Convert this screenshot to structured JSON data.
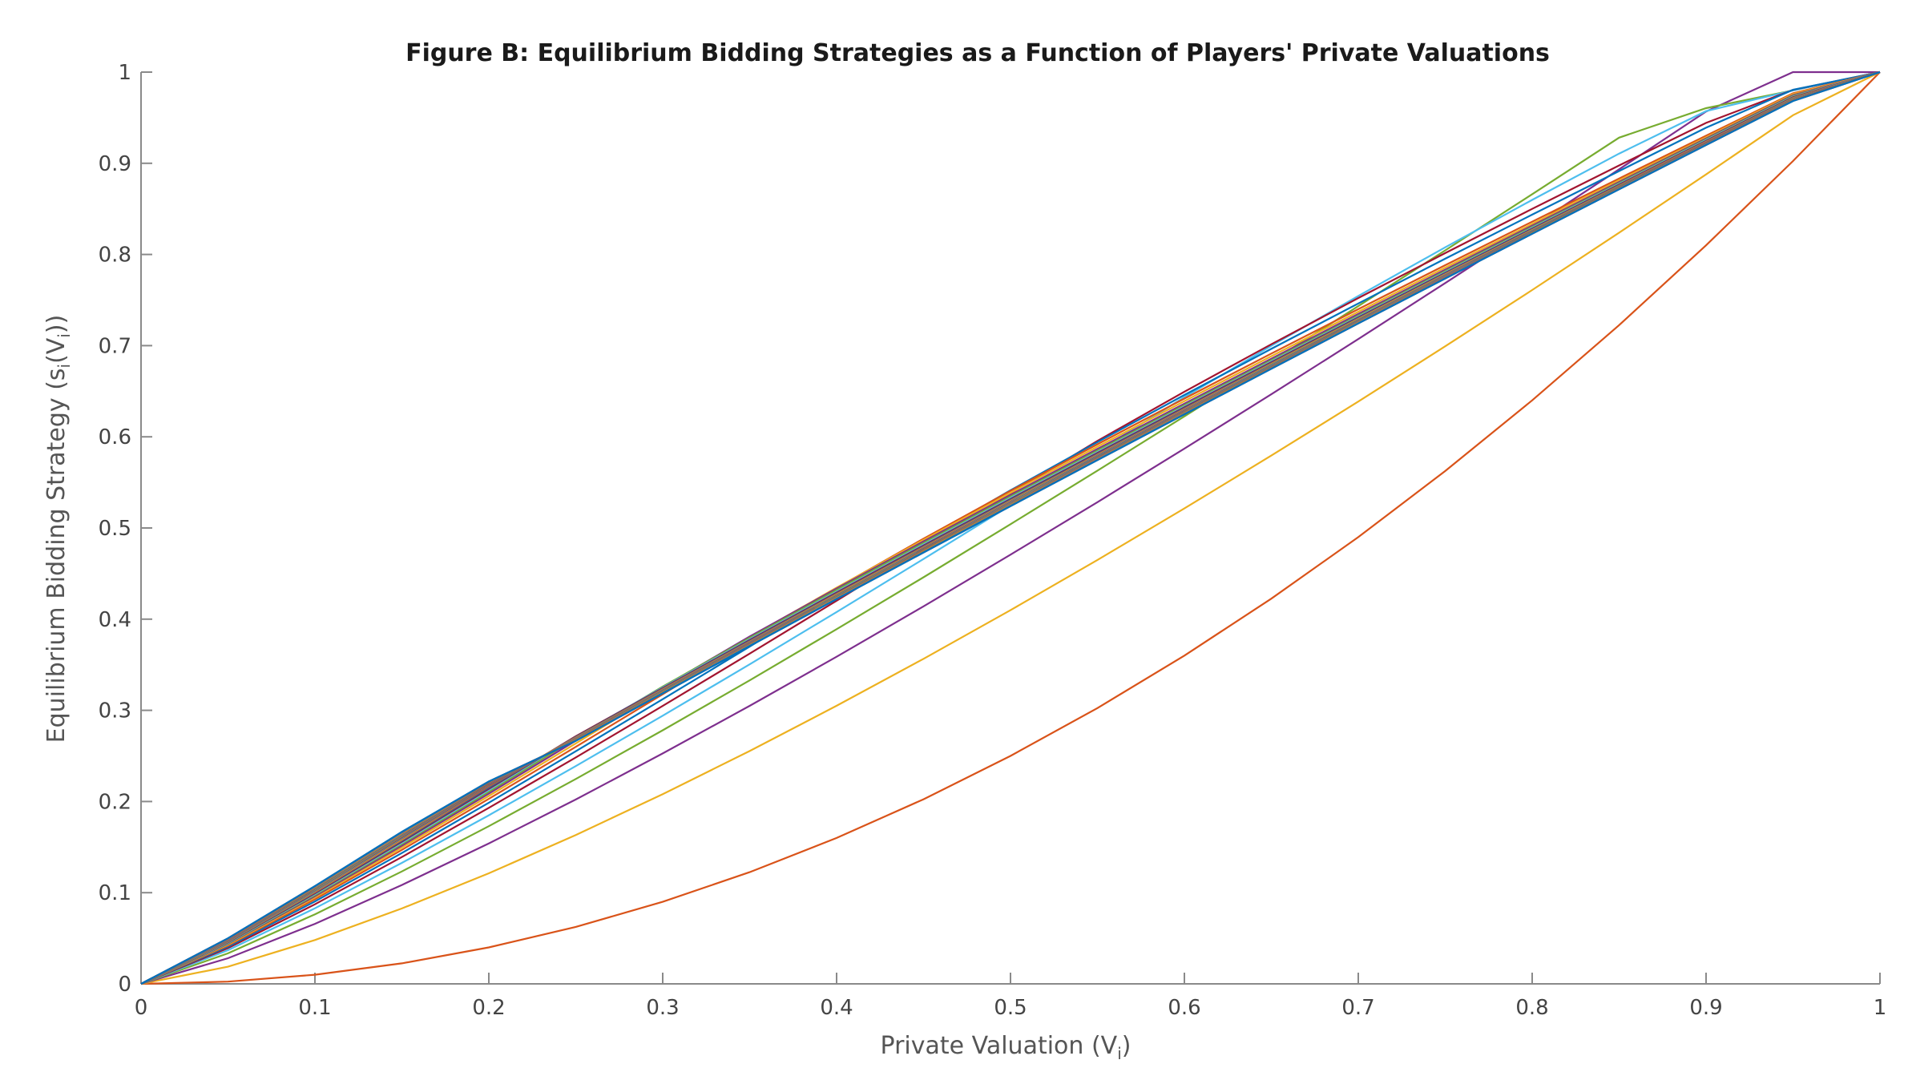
{
  "chart_data": {
    "type": "line",
    "title": "Figure B: Equilibrium Bidding Strategies as a Function of Players' Private Valuations",
    "xlabel": "Private Valuation (V",
    "xlabel_sub": "i",
    "xlabel_close": ")",
    "ylabel": "Equilibrium Bidding Strategy (s",
    "ylabel_sub1": "i",
    "ylabel_mid": "(V",
    "ylabel_sub2": "i",
    "ylabel_close": "))",
    "xlim": [
      0,
      1
    ],
    "ylim": [
      0,
      1
    ],
    "x_ticks": [
      "0",
      "0.1",
      "0.2",
      "0.3",
      "0.4",
      "0.5",
      "0.6",
      "0.7",
      "0.8",
      "0.9",
      "1"
    ],
    "y_ticks": [
      "0",
      "0.1",
      "0.2",
      "0.3",
      "0.4",
      "0.5",
      "0.6",
      "0.7",
      "0.8",
      "0.9",
      "1"
    ],
    "grid": false,
    "x": [
      0,
      0.05,
      0.1,
      0.15,
      0.2,
      0.25,
      0.3,
      0.35,
      0.4,
      0.45,
      0.5,
      0.55,
      0.6,
      0.65,
      0.7,
      0.75,
      0.8,
      0.85,
      0.9,
      0.95,
      1
    ],
    "series": [
      {
        "color": "#d95319",
        "values": [
          0,
          0.0025,
          0.01,
          0.0225,
          0.04,
          0.0625,
          0.09,
          0.1225,
          0.16,
          0.2025,
          0.25,
          0.3025,
          0.36,
          0.4225,
          0.49,
          0.5625,
          0.64,
          0.7225,
          0.81,
          0.9025,
          1
        ]
      },
      {
        "color": "#edb120",
        "values": [
          0,
          0.0188,
          0.0481,
          0.0827,
          0.1213,
          0.1633,
          0.2081,
          0.2554,
          0.305,
          0.3565,
          0.4098,
          0.4649,
          0.5214,
          0.5794,
          0.6387,
          0.6993,
          0.761,
          0.8239,
          0.8878,
          0.9527,
          1
        ]
      },
      {
        "color": "#7e2f8e",
        "values": [
          0,
          0.0281,
          0.0658,
          0.1084,
          0.154,
          0.2022,
          0.2527,
          0.3049,
          0.3588,
          0.4141,
          0.4707,
          0.5283,
          0.5871,
          0.6467,
          0.7072,
          0.7686,
          0.8306,
          0.8934,
          0.9568,
          1.0208,
          1
        ]
      },
      {
        "color": "#77ac30",
        "values": [
          0,
          0.0335,
          0.0763,
          0.1233,
          0.1729,
          0.2247,
          0.2781,
          0.3329,
          0.389,
          0.446,
          0.5041,
          0.5629,
          0.6224,
          0.6826,
          0.7433,
          0.8045,
          0.8661,
          0.9281,
          0.9605,
          0.98,
          1
        ]
      },
      {
        "color": "#4dbeee",
        "values": [
          0,
          0.0369,
          0.0829,
          0.1327,
          0.1849,
          0.2388,
          0.2941,
          0.3504,
          0.4078,
          0.466,
          0.5249,
          0.5843,
          0.6435,
          0.6998,
          0.7545,
          0.8078,
          0.8598,
          0.9106,
          0.9572,
          0.98,
          1
        ]
      },
      {
        "color": "#a2142f",
        "values": [
          0,
          0.0392,
          0.0873,
          0.1391,
          0.1931,
          0.2483,
          0.3048,
          0.3622,
          0.4202,
          0.4789,
          0.5379,
          0.5955,
          0.6495,
          0.7015,
          0.7522,
          0.8015,
          0.85,
          0.8976,
          0.9443,
          0.9805,
          1
        ]
      },
      {
        "color": "#0072bd",
        "values": [
          0,
          0.0408,
          0.0904,
          0.1435,
          0.1987,
          0.2551,
          0.3122,
          0.3699,
          0.4282,
          0.4864,
          0.5413,
          0.5942,
          0.6459,
          0.6965,
          0.7462,
          0.7953,
          0.8437,
          0.8915,
          0.939,
          0.9806,
          1
        ]
      },
      {
        "color": "#d95319",
        "values": [
          0,
          0.0421,
          0.0928,
          0.1469,
          0.2029,
          0.2599,
          0.3177,
          0.376,
          0.4342,
          0.4883,
          0.5407,
          0.5918,
          0.6419,
          0.6913,
          0.74,
          0.7882,
          0.8359,
          0.8833,
          0.9302,
          0.9768,
          1
        ]
      },
      {
        "color": "#edb120",
        "values": [
          0,
          0.043,
          0.0946,
          0.1495,
          0.2061,
          0.2637,
          0.322,
          0.3804,
          0.4345,
          0.487,
          0.5385,
          0.5892,
          0.6391,
          0.6884,
          0.7372,
          0.7856,
          0.8336,
          0.8813,
          0.9286,
          0.9759,
          1
        ]
      },
      {
        "color": "#7e2f8e",
        "values": [
          0,
          0.0438,
          0.0961,
          0.1516,
          0.2087,
          0.2667,
          0.3253,
          0.3809,
          0.4336,
          0.4853,
          0.5362,
          0.5866,
          0.6364,
          0.6857,
          0.7347,
          0.7833,
          0.8316,
          0.8795,
          0.9272,
          0.9747,
          1
        ]
      },
      {
        "color": "#77ac30",
        "values": [
          0,
          0.0444,
          0.0974,
          0.1533,
          0.2107,
          0.2692,
          0.326,
          0.3795,
          0.432,
          0.4836,
          0.5345,
          0.5849,
          0.6347,
          0.684,
          0.733,
          0.7818,
          0.8302,
          0.8783,
          0.9262,
          0.9738,
          1
        ]
      },
      {
        "color": "#4dbeee",
        "values": [
          0,
          0.0449,
          0.0983,
          0.1547,
          0.2125,
          0.2712,
          0.3252,
          0.3781,
          0.4303,
          0.482,
          0.533,
          0.5834,
          0.6334,
          0.6828,
          0.7319,
          0.7807,
          0.8292,
          0.8774,
          0.9254,
          0.9731,
          1
        ]
      },
      {
        "color": "#a2142f",
        "values": [
          0,
          0.0454,
          0.0992,
          0.1559,
          0.214,
          0.2715,
          0.3244,
          0.3771,
          0.4292,
          0.4808,
          0.5318,
          0.5823,
          0.6323,
          0.6818,
          0.731,
          0.7798,
          0.8284,
          0.8766,
          0.9247,
          0.9725,
          1
        ]
      },
      {
        "color": "#0072bd",
        "values": [
          0,
          0.0458,
          0.1,
          0.157,
          0.2153,
          0.2708,
          0.3237,
          0.3762,
          0.4282,
          0.4798,
          0.5308,
          0.5813,
          0.6314,
          0.6809,
          0.7302,
          0.7791,
          0.8277,
          0.876,
          0.9241,
          0.972,
          1
        ]
      },
      {
        "color": "#d95319",
        "values": [
          0,
          0.0461,
          0.1006,
          0.1579,
          0.2164,
          0.2702,
          0.3232,
          0.3755,
          0.4275,
          0.479,
          0.53,
          0.5805,
          0.6306,
          0.6802,
          0.7295,
          0.7785,
          0.8271,
          0.8755,
          0.9236,
          0.9716,
          1
        ]
      },
      {
        "color": "#edb120",
        "values": [
          0,
          0.0464,
          0.1012,
          0.1587,
          0.2174,
          0.2698,
          0.3227,
          0.375,
          0.4269,
          0.4784,
          0.5294,
          0.5799,
          0.63,
          0.6796,
          0.729,
          0.778,
          0.8266,
          0.875,
          0.9232,
          0.9713,
          1
        ]
      },
      {
        "color": "#7e2f8e",
        "values": [
          0,
          0.0467,
          0.1017,
          0.1594,
          0.2175,
          0.2695,
          0.3223,
          0.3746,
          0.4264,
          0.4779,
          0.5289,
          0.5794,
          0.6295,
          0.6792,
          0.7285,
          0.7775,
          0.8262,
          0.8747,
          0.9229,
          0.971,
          1
        ]
      },
      {
        "color": "#77ac30",
        "values": [
          0,
          0.0469,
          0.1021,
          0.16,
          0.2178,
          0.2692,
          0.322,
          0.3742,
          0.426,
          0.4774,
          0.5284,
          0.5789,
          0.629,
          0.6788,
          0.7281,
          0.7771,
          0.8259,
          0.8744,
          0.9226,
          0.9707,
          1
        ]
      },
      {
        "color": "#4dbeee",
        "values": [
          0,
          0.0471,
          0.1025,
          0.1605,
          0.2181,
          0.269,
          0.3217,
          0.3739,
          0.4257,
          0.4771,
          0.528,
          0.5786,
          0.6287,
          0.6784,
          0.7278,
          0.7768,
          0.8256,
          0.8741,
          0.9224,
          0.9705,
          1
        ]
      },
      {
        "color": "#a2142f",
        "values": [
          0,
          0.0473,
          0.1029,
          0.1609,
          0.2183,
          0.2688,
          0.3215,
          0.3737,
          0.4254,
          0.4768,
          0.5277,
          0.5782,
          0.6284,
          0.6781,
          0.7275,
          0.7766,
          0.8254,
          0.8739,
          0.9222,
          0.9703,
          1
        ]
      },
      {
        "color": "#0072bd",
        "values": [
          0,
          0.0475,
          0.1032,
          0.1613,
          0.2186,
          0.2687,
          0.3213,
          0.3734,
          0.4252,
          0.4765,
          0.5274,
          0.578,
          0.6281,
          0.6779,
          0.7273,
          0.7764,
          0.8252,
          0.8737,
          0.922,
          0.9702,
          1
        ]
      },
      {
        "color": "#d95319",
        "values": [
          0,
          0.0477,
          0.1035,
          0.1617,
          0.2188,
          0.2685,
          0.3211,
          0.3732,
          0.425,
          0.4763,
          0.5272,
          0.5777,
          0.6279,
          0.6776,
          0.7271,
          0.7762,
          0.825,
          0.8736,
          0.9219,
          0.97,
          1
        ]
      },
      {
        "color": "#edb120",
        "values": [
          0,
          0.0478,
          0.1037,
          0.162,
          0.219,
          0.2684,
          0.321,
          0.3731,
          0.4248,
          0.4761,
          0.527,
          0.5775,
          0.6277,
          0.6774,
          0.7269,
          0.776,
          0.8248,
          0.8734,
          0.9217,
          0.9699,
          1
        ]
      },
      {
        "color": "#7e2f8e",
        "values": [
          0,
          0.0479,
          0.104,
          0.1623,
          0.2192,
          0.2683,
          0.3208,
          0.3729,
          0.4246,
          0.4759,
          0.5268,
          0.5773,
          0.6275,
          0.6773,
          0.7267,
          0.7758,
          0.8247,
          0.8733,
          0.9216,
          0.9698,
          1
        ]
      },
      {
        "color": "#77ac30",
        "values": [
          0,
          0.0481,
          0.1042,
          0.1626,
          0.2194,
          0.2682,
          0.3207,
          0.3728,
          0.4245,
          0.4758,
          0.5266,
          0.5772,
          0.6273,
          0.6771,
          0.7265,
          0.7757,
          0.8245,
          0.8731,
          0.9215,
          0.9697,
          1
        ]
      },
      {
        "color": "#4dbeee",
        "values": [
          0,
          0.0482,
          0.1044,
          0.1628,
          0.2196,
          0.2681,
          0.3206,
          0.3727,
          0.4243,
          0.4756,
          0.5265,
          0.577,
          0.6272,
          0.677,
          0.7264,
          0.7756,
          0.8244,
          0.873,
          0.9214,
          0.9696,
          1
        ]
      },
      {
        "color": "#a2142f",
        "values": [
          0,
          0.0483,
          0.1045,
          0.1631,
          0.2197,
          0.268,
          0.3205,
          0.3726,
          0.4242,
          0.4755,
          0.5263,
          0.5769,
          0.6271,
          0.6768,
          0.7263,
          0.7755,
          0.8243,
          0.8729,
          0.9214,
          0.9696,
          1
        ]
      },
      {
        "color": "#0072bd",
        "values": [
          0,
          0.0484,
          0.1047,
          0.1633,
          0.2199,
          0.2679,
          0.3204,
          0.3725,
          0.4241,
          0.4754,
          0.5262,
          0.5768,
          0.6269,
          0.6767,
          0.7262,
          0.7754,
          0.8242,
          0.8729,
          0.9213,
          0.9695,
          1
        ]
      },
      {
        "color": "#d95319",
        "values": [
          0,
          0.0485,
          0.1049,
          0.1635,
          0.22,
          0.2679,
          0.3203,
          0.3724,
          0.424,
          0.4753,
          0.5261,
          0.5767,
          0.6268,
          0.6766,
          0.7261,
          0.7753,
          0.8242,
          0.8728,
          0.9212,
          0.9695,
          1
        ]
      },
      {
        "color": "#edb120",
        "values": [
          0,
          0.0486,
          0.105,
          0.1637,
          0.2202,
          0.2678,
          0.3203,
          0.3723,
          0.4239,
          0.4752,
          0.526,
          0.5766,
          0.6267,
          0.6765,
          0.726,
          0.7752,
          0.8241,
          0.8727,
          0.9211,
          0.9694,
          1
        ]
      },
      {
        "color": "#7e2f8e",
        "values": [
          0,
          0.0487,
          0.1051,
          0.1638,
          0.2203,
          0.2677,
          0.3202,
          0.3722,
          0.4238,
          0.4751,
          0.5259,
          0.5765,
          0.6266,
          0.6764,
          0.7259,
          0.7751,
          0.824,
          0.8726,
          0.9211,
          0.9694,
          1
        ]
      },
      {
        "color": "#77ac30",
        "values": [
          0,
          0.0488,
          0.1052,
          0.164,
          0.2204,
          0.2677,
          0.3201,
          0.3721,
          0.4238,
          0.475,
          0.5258,
          0.5764,
          0.6266,
          0.6764,
          0.7258,
          0.775,
          0.8239,
          0.8726,
          0.921,
          0.9693,
          1
        ]
      },
      {
        "color": "#4dbeee",
        "values": [
          0,
          0.0488,
          0.1053,
          0.1641,
          0.2205,
          0.2676,
          0.3201,
          0.3721,
          0.4237,
          0.4749,
          0.5258,
          0.5763,
          0.6265,
          0.6763,
          0.7258,
          0.775,
          0.8239,
          0.8725,
          0.921,
          0.9693,
          1
        ]
      },
      {
        "color": "#a2142f",
        "values": [
          0,
          0.0489,
          0.1054,
          0.1643,
          0.2206,
          0.2676,
          0.32,
          0.372,
          0.4236,
          0.4749,
          0.5257,
          0.5762,
          0.6264,
          0.6762,
          0.7257,
          0.7749,
          0.8238,
          0.8725,
          0.9209,
          0.9692,
          1
        ]
      },
      {
        "color": "#0072bd",
        "values": [
          0,
          0.049,
          0.1055,
          0.1644,
          0.2207,
          0.2675,
          0.32,
          0.372,
          0.4236,
          0.4748,
          0.5256,
          0.5762,
          0.6263,
          0.6762,
          0.7256,
          0.7748,
          0.8237,
          0.8724,
          0.9209,
          0.9692,
          1
        ]
      },
      {
        "color": "#d95319",
        "values": [
          0,
          0.0491,
          0.1057,
          0.1647,
          0.2209,
          0.2674,
          0.3198,
          0.3718,
          0.4234,
          0.4746,
          0.5254,
          0.5759,
          0.6261,
          0.6759,
          0.7254,
          0.7746,
          0.8235,
          0.8722,
          0.9207,
          0.9691,
          1
        ]
      },
      {
        "color": "#edb120",
        "values": [
          0,
          0.0493,
          0.106,
          0.1651,
          0.2212,
          0.2672,
          0.3195,
          0.3714,
          0.423,
          0.4742,
          0.525,
          0.5755,
          0.6257,
          0.6755,
          0.7251,
          0.7743,
          0.8233,
          0.8721,
          0.9205,
          0.9688,
          1
        ]
      },
      {
        "color": "#7e2f8e",
        "values": [
          0,
          0.0495,
          0.1064,
          0.1656,
          0.2214,
          0.267,
          0.3192,
          0.3711,
          0.4226,
          0.4738,
          0.5246,
          0.5751,
          0.6253,
          0.6752,
          0.7248,
          0.7741,
          0.8231,
          0.8718,
          0.9203,
          0.9686,
          1
        ]
      },
      {
        "color": "#77ac30",
        "values": [
          0,
          0.0497,
          0.1067,
          0.166,
          0.2216,
          0.2668,
          0.319,
          0.3709,
          0.4224,
          0.4736,
          0.5244,
          0.5749,
          0.6251,
          0.675,
          0.7246,
          0.7739,
          0.823,
          0.8717,
          0.9202,
          0.9685,
          1
        ]
      },
      {
        "color": "#4dbeee",
        "values": [
          0,
          0.0498,
          0.1069,
          0.1663,
          0.2218,
          0.2667,
          0.3188,
          0.3707,
          0.4222,
          0.4734,
          0.5242,
          0.5747,
          0.6249,
          0.6748,
          0.7245,
          0.7738,
          0.8228,
          0.8716,
          0.9201,
          0.9684,
          1
        ]
      },
      {
        "color": "#a2142f",
        "values": [
          0,
          0.0499,
          0.1071,
          0.1666,
          0.2219,
          0.2666,
          0.3187,
          0.3706,
          0.4221,
          0.4732,
          0.524,
          0.5745,
          0.6247,
          0.6747,
          0.7243,
          0.7737,
          0.8227,
          0.8715,
          0.92,
          0.9684,
          1
        ]
      },
      {
        "color": "#0072bd",
        "values": [
          0,
          0.05,
          0.1073,
          0.1668,
          0.222,
          0.2665,
          0.3186,
          0.3705,
          0.422,
          0.4731,
          0.5239,
          0.5744,
          0.6246,
          0.6746,
          0.7243,
          0.7736,
          0.8227,
          0.8714,
          0.92,
          0.9683,
          1
        ]
      }
    ]
  }
}
